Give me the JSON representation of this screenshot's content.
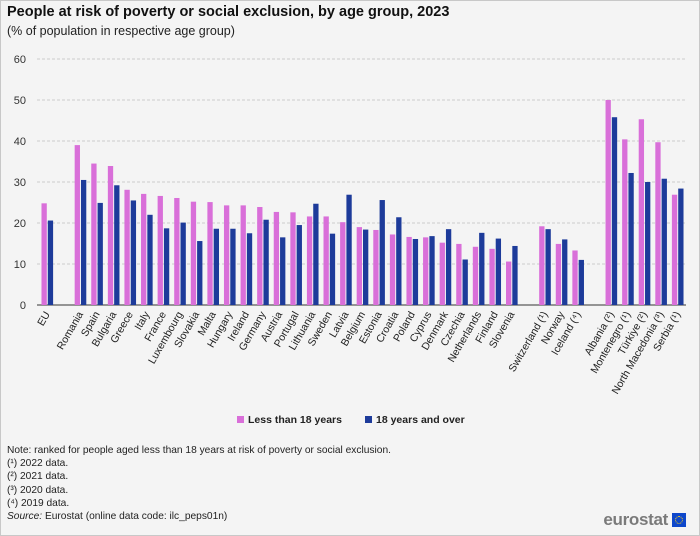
{
  "header": {
    "title": "People at risk of poverty or social exclusion, by age group, 2023",
    "subtitle": "(% of population  in respective age group)"
  },
  "chart_data": {
    "type": "bar",
    "title": "People at risk of poverty or social exclusion, by age group, 2023",
    "subtitle": "(% of population  in respective age group)",
    "ylim": [
      0,
      60
    ],
    "yticks": [
      0,
      10,
      20,
      30,
      40,
      50,
      60
    ],
    "grid": true,
    "legend_position": "bottom",
    "groups": [
      [
        "EU"
      ],
      [
        "Romania",
        "Spain",
        "Bulgaria",
        "Greece",
        "Italy",
        "France",
        "Luxembourg",
        "Slovakia",
        "Malta",
        "Hungary",
        "Ireland",
        "Germany",
        "Austria",
        "Portugal",
        "Lithuania",
        "Sweden",
        "Latvia",
        "Belgium",
        "Estonia",
        "Croatia",
        "Poland",
        "Cyprus",
        "Denmark",
        "Czechia",
        "Netherlands",
        "Finland",
        "Slovenia"
      ],
      [
        "Switzerland (¹)",
        "Norway",
        "Iceland (⁴)"
      ],
      [
        "Albania (²)",
        "Montenegro (¹)",
        "Türkiye (²)",
        "North Macedonia (³)",
        "Serbia (¹)"
      ]
    ],
    "categories": [
      "EU",
      "Romania",
      "Spain",
      "Bulgaria",
      "Greece",
      "Italy",
      "France",
      "Luxembourg",
      "Slovakia",
      "Malta",
      "Hungary",
      "Ireland",
      "Germany",
      "Austria",
      "Portugal",
      "Lithuania",
      "Sweden",
      "Latvia",
      "Belgium",
      "Estonia",
      "Croatia",
      "Poland",
      "Cyprus",
      "Denmark",
      "Czechia",
      "Netherlands",
      "Finland",
      "Slovenia",
      "Switzerland (¹)",
      "Norway",
      "Iceland (⁴)",
      "Albania (²)",
      "Montenegro (¹)",
      "Türkiye (²)",
      "North Macedonia (³)",
      "Serbia (¹)"
    ],
    "series": [
      {
        "name": "Less than 18 years",
        "color": "#d96fd9",
        "values": [
          24.8,
          39.0,
          34.5,
          33.9,
          28.1,
          27.1,
          26.6,
          26.1,
          25.2,
          25.1,
          24.3,
          24.3,
          23.9,
          22.7,
          22.6,
          21.6,
          21.6,
          20.2,
          19.0,
          18.3,
          17.2,
          16.6,
          16.5,
          15.2,
          14.9,
          14.2,
          13.7,
          10.6,
          19.2,
          14.9,
          13.3,
          50.0,
          40.4,
          45.3,
          39.7,
          26.9
        ]
      },
      {
        "name": "18 years and over",
        "color": "#1d3b9a",
        "values": [
          20.6,
          30.5,
          24.9,
          29.2,
          25.5,
          22.0,
          18.7,
          20.1,
          15.6,
          18.6,
          18.6,
          17.5,
          20.8,
          16.5,
          19.5,
          24.7,
          17.4,
          26.9,
          18.4,
          25.6,
          21.4,
          16.1,
          16.8,
          18.5,
          11.1,
          17.6,
          16.2,
          14.4,
          18.5,
          16.0,
          11.0,
          45.8,
          32.2,
          30.0,
          30.8,
          28.4
        ]
      }
    ]
  },
  "notes": {
    "note": "Note: ranked for people aged less than 18 years at risk of poverty or social exclusion.",
    "f1": "(¹) 2022 data.",
    "f2": "(²) 2021 data.",
    "f3": "(³) 2020 data.",
    "f4": "(⁴) 2019 data.",
    "source_label": "Source:",
    "source_text": " Eurostat (online data code: ilc_peps01n)"
  },
  "logo": {
    "text": "eurostat",
    "icon": "eu-flag-icon"
  }
}
